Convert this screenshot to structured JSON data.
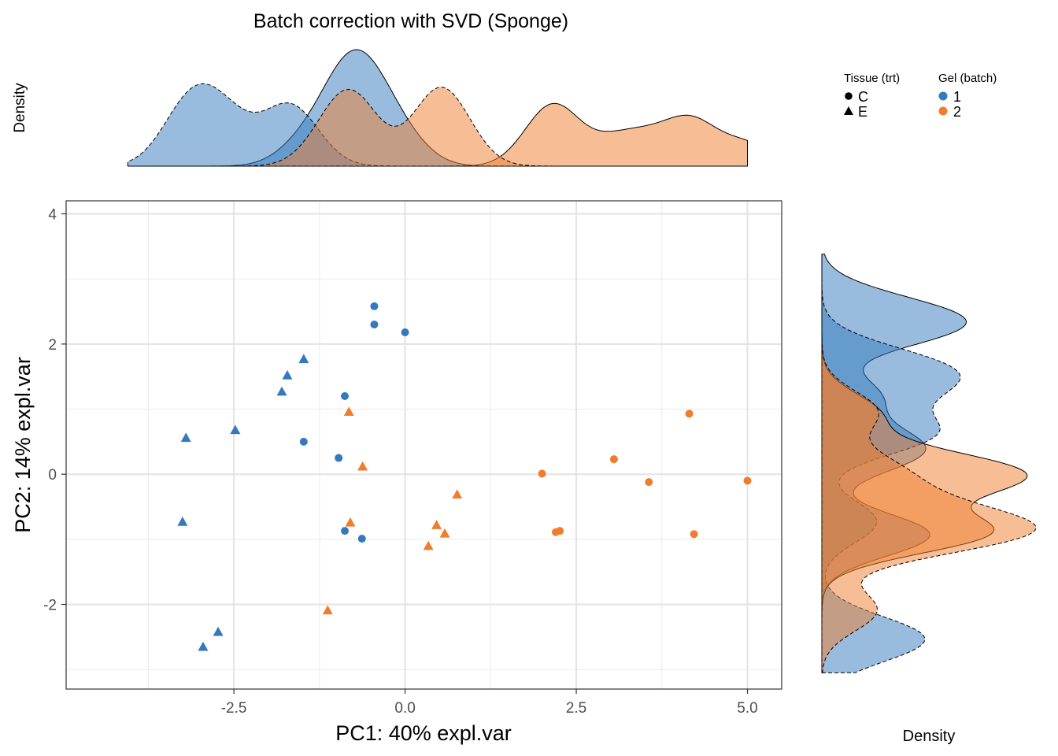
{
  "chart_data": {
    "type": "scatter",
    "title": "Batch correction with SVD (Sponge)",
    "xlabel": "PC1: 40% expl.var",
    "ylabel": "PC2: 14% expl.var",
    "xlim": [
      -4.95,
      5.5
    ],
    "ylim": [
      -3.3,
      4.2
    ],
    "x_ticks": [
      -2.5,
      0.0,
      2.5,
      5.0
    ],
    "x_tick_labels": [
      "-2.5",
      "0.0",
      "2.5",
      "5.0"
    ],
    "y_ticks": [
      -2,
      0,
      2,
      4
    ],
    "y_tick_labels": [
      "-2",
      "0",
      "2",
      "4"
    ],
    "grid": true,
    "top_density_label": "Density",
    "right_density_label": "Density",
    "legend": {
      "placement": "top-right",
      "shape_title": "Tissue (trt)",
      "shape_items": [
        {
          "label": "C",
          "shape": "circle"
        },
        {
          "label": "E",
          "shape": "triangle"
        }
      ],
      "color_title": "Gel (batch)",
      "color_items": [
        {
          "label": "1",
          "color": "#3479BE"
        },
        {
          "label": "2",
          "color": "#F07D2E"
        }
      ]
    },
    "colors": {
      "batch1": "#3479BE",
      "batch2": "#F07D2E",
      "batch1_fill": "#3479BE",
      "batch2_fill": "#F07D2E"
    },
    "points": [
      {
        "x": -0.45,
        "y": 2.58,
        "tissue": "C",
        "batch": "1"
      },
      {
        "x": -0.45,
        "y": 2.3,
        "tissue": "C",
        "batch": "1"
      },
      {
        "x": 0.0,
        "y": 2.18,
        "tissue": "C",
        "batch": "1"
      },
      {
        "x": -0.88,
        "y": 1.2,
        "tissue": "C",
        "batch": "1"
      },
      {
        "x": -1.48,
        "y": 0.5,
        "tissue": "C",
        "batch": "1"
      },
      {
        "x": -0.97,
        "y": 0.25,
        "tissue": "C",
        "batch": "1"
      },
      {
        "x": -0.88,
        "y": -0.87,
        "tissue": "C",
        "batch": "1"
      },
      {
        "x": -0.63,
        "y": -0.99,
        "tissue": "C",
        "batch": "1"
      },
      {
        "x": -1.48,
        "y": 1.77,
        "tissue": "E",
        "batch": "1"
      },
      {
        "x": -1.72,
        "y": 1.52,
        "tissue": "E",
        "batch": "1"
      },
      {
        "x": -1.8,
        "y": 1.27,
        "tissue": "E",
        "batch": "1"
      },
      {
        "x": -2.48,
        "y": 0.68,
        "tissue": "E",
        "batch": "1"
      },
      {
        "x": -3.2,
        "y": 0.56,
        "tissue": "E",
        "batch": "1"
      },
      {
        "x": -3.25,
        "y": -0.73,
        "tissue": "E",
        "batch": "1"
      },
      {
        "x": -2.73,
        "y": -2.42,
        "tissue": "E",
        "batch": "1"
      },
      {
        "x": -2.95,
        "y": -2.65,
        "tissue": "E",
        "batch": "1"
      },
      {
        "x": 4.15,
        "y": 0.93,
        "tissue": "C",
        "batch": "2"
      },
      {
        "x": 3.05,
        "y": 0.23,
        "tissue": "C",
        "batch": "2"
      },
      {
        "x": 2.0,
        "y": 0.01,
        "tissue": "C",
        "batch": "2"
      },
      {
        "x": 3.56,
        "y": -0.12,
        "tissue": "C",
        "batch": "2"
      },
      {
        "x": 5.0,
        "y": -0.1,
        "tissue": "C",
        "batch": "2"
      },
      {
        "x": 2.2,
        "y": -0.89,
        "tissue": "C",
        "batch": "2"
      },
      {
        "x": 2.26,
        "y": -0.87,
        "tissue": "C",
        "batch": "2"
      },
      {
        "x": 4.22,
        "y": -0.92,
        "tissue": "C",
        "batch": "2"
      },
      {
        "x": -0.82,
        "y": 0.96,
        "tissue": "E",
        "batch": "2"
      },
      {
        "x": -0.62,
        "y": 0.12,
        "tissue": "E",
        "batch": "2"
      },
      {
        "x": 0.76,
        "y": -0.31,
        "tissue": "E",
        "batch": "2"
      },
      {
        "x": -0.8,
        "y": -0.74,
        "tissue": "E",
        "batch": "2"
      },
      {
        "x": 0.46,
        "y": -0.78,
        "tissue": "E",
        "batch": "2"
      },
      {
        "x": 0.58,
        "y": -0.91,
        "tissue": "E",
        "batch": "2"
      },
      {
        "x": 0.34,
        "y": -1.1,
        "tissue": "E",
        "batch": "2"
      },
      {
        "x": -1.13,
        "y": -2.09,
        "tissue": "E",
        "batch": "2"
      }
    ]
  }
}
